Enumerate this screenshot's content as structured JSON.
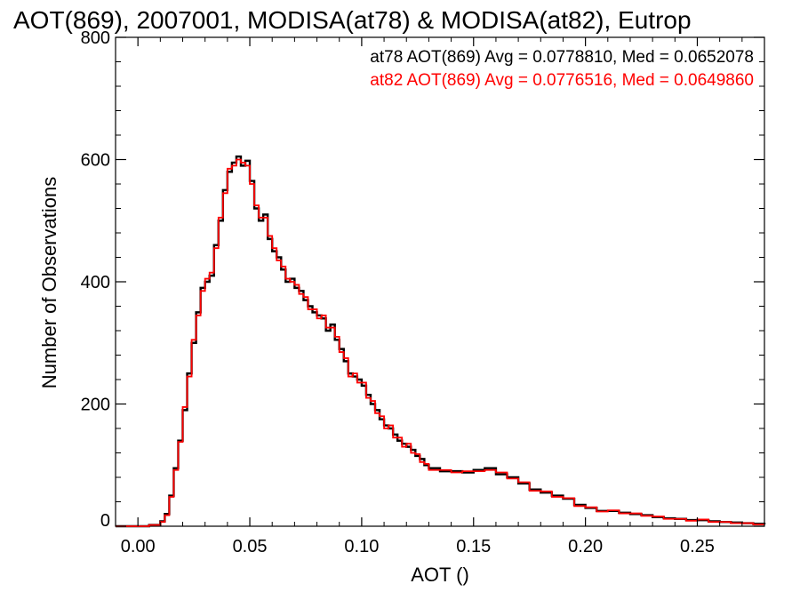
{
  "chart_data": {
    "type": "line",
    "title": "AOT(869), 2007001, MODISA(at78) & MODISA(at82), Eutrop",
    "xlabel": "AOT ()",
    "ylabel": "Number of Observations",
    "xlim": [
      -0.01,
      0.28
    ],
    "ylim": [
      0,
      800
    ],
    "xticks": [
      "0.00",
      "0.05",
      "0.10",
      "0.15",
      "0.20",
      "0.25"
    ],
    "yticks": [
      "0",
      "200",
      "400",
      "600",
      "800"
    ],
    "grid": false,
    "legend_position": "top-right",
    "step": true,
    "series": [
      {
        "name": "at78",
        "color": "#000000",
        "annotation": "at78 AOT(869) Avg = 0.0778810, Med = 0.0652078",
        "points": [
          [
            0.0,
            0
          ],
          [
            0.005,
            2
          ],
          [
            0.01,
            8
          ],
          [
            0.012,
            20
          ],
          [
            0.014,
            50
          ],
          [
            0.016,
            95
          ],
          [
            0.018,
            140
          ],
          [
            0.02,
            190
          ],
          [
            0.022,
            250
          ],
          [
            0.024,
            300
          ],
          [
            0.026,
            350
          ],
          [
            0.028,
            390
          ],
          [
            0.03,
            400
          ],
          [
            0.032,
            410
          ],
          [
            0.034,
            460
          ],
          [
            0.036,
            500
          ],
          [
            0.038,
            550
          ],
          [
            0.04,
            580
          ],
          [
            0.042,
            595
          ],
          [
            0.044,
            605
          ],
          [
            0.046,
            590
          ],
          [
            0.048,
            598
          ],
          [
            0.05,
            565
          ],
          [
            0.052,
            520
          ],
          [
            0.054,
            500
          ],
          [
            0.056,
            510
          ],
          [
            0.058,
            470
          ],
          [
            0.06,
            450
          ],
          [
            0.062,
            440
          ],
          [
            0.064,
            420
          ],
          [
            0.066,
            400
          ],
          [
            0.068,
            405
          ],
          [
            0.07,
            390
          ],
          [
            0.072,
            385
          ],
          [
            0.074,
            370
          ],
          [
            0.076,
            360
          ],
          [
            0.078,
            350
          ],
          [
            0.08,
            345
          ],
          [
            0.082,
            340
          ],
          [
            0.084,
            320
          ],
          [
            0.086,
            330
          ],
          [
            0.088,
            305
          ],
          [
            0.09,
            290
          ],
          [
            0.092,
            270
          ],
          [
            0.094,
            250
          ],
          [
            0.096,
            245
          ],
          [
            0.098,
            240
          ],
          [
            0.1,
            230
          ],
          [
            0.102,
            215
          ],
          [
            0.104,
            200
          ],
          [
            0.106,
            190
          ],
          [
            0.108,
            175
          ],
          [
            0.11,
            165
          ],
          [
            0.112,
            160
          ],
          [
            0.114,
            150
          ],
          [
            0.116,
            140
          ],
          [
            0.118,
            135
          ],
          [
            0.12,
            130
          ],
          [
            0.122,
            125
          ],
          [
            0.124,
            115
          ],
          [
            0.126,
            110
          ],
          [
            0.128,
            100
          ],
          [
            0.13,
            95
          ],
          [
            0.135,
            90
          ],
          [
            0.14,
            90
          ],
          [
            0.145,
            88
          ],
          [
            0.15,
            92
          ],
          [
            0.155,
            95
          ],
          [
            0.16,
            85
          ],
          [
            0.165,
            80
          ],
          [
            0.17,
            70
          ],
          [
            0.175,
            60
          ],
          [
            0.18,
            55
          ],
          [
            0.185,
            50
          ],
          [
            0.19,
            45
          ],
          [
            0.195,
            35
          ],
          [
            0.2,
            30
          ],
          [
            0.205,
            25
          ],
          [
            0.21,
            25
          ],
          [
            0.215,
            22
          ],
          [
            0.22,
            20
          ],
          [
            0.225,
            18
          ],
          [
            0.23,
            15
          ],
          [
            0.235,
            13
          ],
          [
            0.24,
            12
          ],
          [
            0.245,
            10
          ],
          [
            0.25,
            10
          ],
          [
            0.255,
            8
          ],
          [
            0.26,
            7
          ],
          [
            0.265,
            6
          ],
          [
            0.27,
            5
          ],
          [
            0.275,
            4
          ],
          [
            0.28,
            3
          ]
        ]
      },
      {
        "name": "at82",
        "color": "#ff0000",
        "annotation": "at82 AOT(869) Avg = 0.0776516, Med = 0.0649860",
        "points": [
          [
            0.0,
            0
          ],
          [
            0.005,
            2
          ],
          [
            0.01,
            7
          ],
          [
            0.012,
            18
          ],
          [
            0.014,
            48
          ],
          [
            0.016,
            92
          ],
          [
            0.018,
            138
          ],
          [
            0.02,
            195
          ],
          [
            0.022,
            245
          ],
          [
            0.024,
            305
          ],
          [
            0.026,
            345
          ],
          [
            0.028,
            385
          ],
          [
            0.03,
            405
          ],
          [
            0.032,
            415
          ],
          [
            0.034,
            455
          ],
          [
            0.036,
            505
          ],
          [
            0.038,
            545
          ],
          [
            0.04,
            585
          ],
          [
            0.042,
            590
          ],
          [
            0.044,
            600
          ],
          [
            0.046,
            595
          ],
          [
            0.048,
            590
          ],
          [
            0.05,
            560
          ],
          [
            0.052,
            525
          ],
          [
            0.054,
            505
          ],
          [
            0.056,
            505
          ],
          [
            0.058,
            475
          ],
          [
            0.06,
            455
          ],
          [
            0.062,
            435
          ],
          [
            0.064,
            425
          ],
          [
            0.066,
            405
          ],
          [
            0.068,
            400
          ],
          [
            0.07,
            395
          ],
          [
            0.072,
            380
          ],
          [
            0.074,
            375
          ],
          [
            0.076,
            355
          ],
          [
            0.078,
            355
          ],
          [
            0.08,
            340
          ],
          [
            0.082,
            345
          ],
          [
            0.084,
            325
          ],
          [
            0.086,
            325
          ],
          [
            0.088,
            310
          ],
          [
            0.09,
            285
          ],
          [
            0.092,
            275
          ],
          [
            0.094,
            245
          ],
          [
            0.096,
            250
          ],
          [
            0.098,
            235
          ],
          [
            0.1,
            235
          ],
          [
            0.102,
            210
          ],
          [
            0.104,
            205
          ],
          [
            0.106,
            185
          ],
          [
            0.108,
            180
          ],
          [
            0.11,
            160
          ],
          [
            0.112,
            165
          ],
          [
            0.114,
            145
          ],
          [
            0.116,
            145
          ],
          [
            0.118,
            130
          ],
          [
            0.12,
            135
          ],
          [
            0.122,
            120
          ],
          [
            0.124,
            118
          ],
          [
            0.126,
            105
          ],
          [
            0.128,
            102
          ],
          [
            0.13,
            92
          ],
          [
            0.135,
            92
          ],
          [
            0.14,
            88
          ],
          [
            0.145,
            90
          ],
          [
            0.15,
            90
          ],
          [
            0.155,
            92
          ],
          [
            0.16,
            88
          ],
          [
            0.165,
            78
          ],
          [
            0.17,
            72
          ],
          [
            0.175,
            58
          ],
          [
            0.18,
            57
          ],
          [
            0.185,
            48
          ],
          [
            0.19,
            46
          ],
          [
            0.195,
            33
          ],
          [
            0.2,
            31
          ],
          [
            0.205,
            24
          ],
          [
            0.21,
            26
          ],
          [
            0.215,
            21
          ],
          [
            0.22,
            21
          ],
          [
            0.225,
            17
          ],
          [
            0.23,
            16
          ],
          [
            0.235,
            12
          ],
          [
            0.24,
            12
          ],
          [
            0.245,
            9
          ],
          [
            0.25,
            11
          ],
          [
            0.255,
            7
          ],
          [
            0.26,
            7
          ],
          [
            0.265,
            5
          ],
          [
            0.27,
            5
          ],
          [
            0.275,
            3
          ],
          [
            0.28,
            3
          ]
        ]
      }
    ]
  }
}
